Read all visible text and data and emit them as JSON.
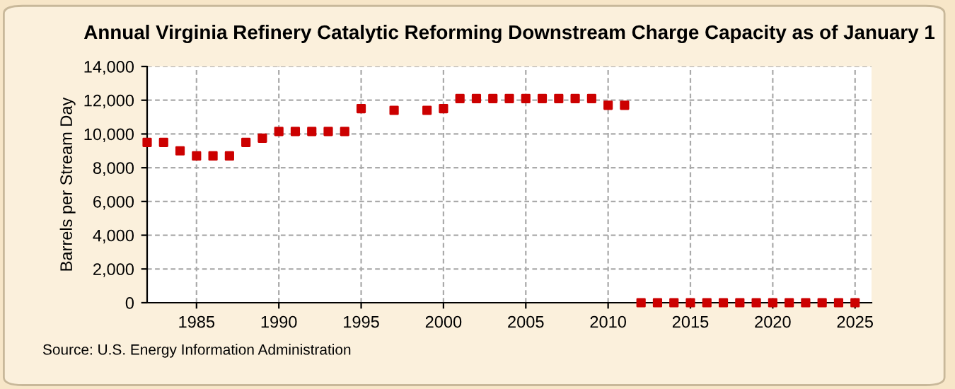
{
  "chart_data": {
    "type": "scatter",
    "title": "Annual Virginia Refinery Catalytic Reforming Downstream Charge Capacity as of January 1",
    "ylabel": "Barrels per Stream Day",
    "x": [
      1982,
      1983,
      1984,
      1985,
      1986,
      1987,
      1988,
      1989,
      1990,
      1991,
      1992,
      1993,
      1994,
      1995,
      1997,
      1999,
      2000,
      2001,
      2002,
      2003,
      2004,
      2005,
      2006,
      2007,
      2008,
      2009,
      2010,
      2011,
      2012,
      2013,
      2014,
      2015,
      2016,
      2017,
      2018,
      2019,
      2020,
      2021,
      2022,
      2023,
      2024,
      2025
    ],
    "series": [
      {
        "color": "#cc0000",
        "values": [
          9500,
          9500,
          9000,
          8700,
          8700,
          8700,
          9500,
          9750,
          10150,
          10150,
          10150,
          10150,
          10150,
          11500,
          11400,
          11400,
          11500,
          12100,
          12100,
          12100,
          12100,
          12100,
          12100,
          12100,
          12100,
          12100,
          11700,
          11700,
          0,
          0,
          0,
          0,
          0,
          0,
          0,
          0,
          0,
          0,
          0,
          0,
          0,
          0
        ]
      }
    ],
    "xlim": [
      1982,
      2026
    ],
    "xticks": [
      1985,
      1990,
      1995,
      2000,
      2005,
      2010,
      2015,
      2020,
      2025
    ],
    "ylim": [
      0,
      14000
    ],
    "yticks": [
      {
        "value": 0,
        "label": "0"
      },
      {
        "value": 2000,
        "label": "2,000"
      },
      {
        "value": 4000,
        "label": "4,000"
      },
      {
        "value": 6000,
        "label": "6,000"
      },
      {
        "value": 8000,
        "label": "8,000"
      },
      {
        "value": 10000,
        "label": "10,000"
      },
      {
        "value": 12000,
        "label": "12,000"
      },
      {
        "value": 14000,
        "label": "14,000"
      }
    ],
    "grid": true,
    "marker": "square",
    "annotations": [
      "Source: U.S. Energy Information Administration"
    ]
  }
}
